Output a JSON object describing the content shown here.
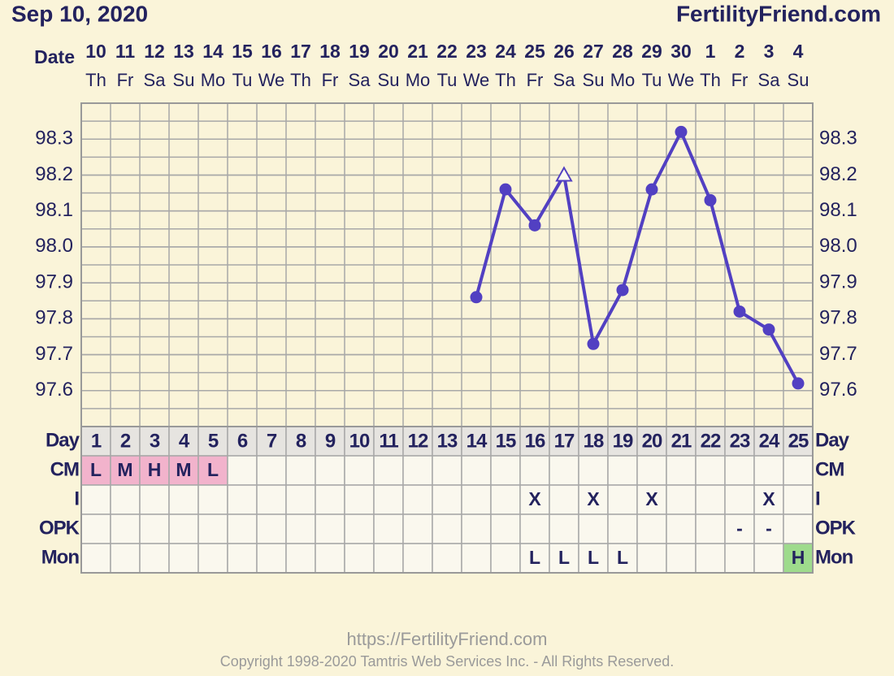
{
  "chart_data": {
    "type": "line",
    "title": "Sep 10, 2020",
    "brand": "FertilityFriend.com",
    "x_label": "Date",
    "categories": [
      "10",
      "11",
      "12",
      "13",
      "14",
      "15",
      "16",
      "17",
      "18",
      "19",
      "20",
      "21",
      "22",
      "23",
      "24",
      "25",
      "26",
      "27",
      "28",
      "29",
      "30",
      "1",
      "2",
      "3",
      "4"
    ],
    "weekdays": [
      "Th",
      "Fr",
      "Sa",
      "Su",
      "Mo",
      "Tu",
      "We",
      "Th",
      "Fr",
      "Sa",
      "Su",
      "Mo",
      "Tu",
      "We",
      "Th",
      "Fr",
      "Sa",
      "Su",
      "Mo",
      "Tu",
      "We",
      "Th",
      "Fr",
      "Sa",
      "Su"
    ],
    "day_label": "Day",
    "days": [
      1,
      2,
      3,
      4,
      5,
      6,
      7,
      8,
      9,
      10,
      11,
      12,
      13,
      14,
      15,
      16,
      17,
      18,
      19,
      20,
      21,
      22,
      23,
      24,
      25
    ],
    "series": [
      {
        "color": "#5240c2",
        "values": [
          null,
          null,
          null,
          null,
          null,
          null,
          null,
          null,
          null,
          null,
          null,
          null,
          null,
          97.86,
          98.16,
          98.06,
          98.2,
          97.73,
          97.88,
          98.16,
          98.32,
          98.13,
          97.82,
          97.77,
          97.62
        ],
        "markers": [
          null,
          null,
          null,
          null,
          null,
          null,
          null,
          null,
          null,
          null,
          null,
          null,
          null,
          "circle",
          "circle",
          "circle",
          "open-triangle",
          "circle",
          "circle",
          "circle",
          "circle",
          "circle",
          "circle",
          "circle",
          "circle"
        ]
      }
    ],
    "ylim": [
      97.5,
      98.4
    ],
    "yticks": [
      {
        "value": 97.6,
        "label": "97.6"
      },
      {
        "value": 97.7,
        "label": "97.7"
      },
      {
        "value": 97.8,
        "label": "97.8"
      },
      {
        "value": 97.9,
        "label": "97.9"
      },
      {
        "value": 98,
        "label": "98.0"
      },
      {
        "value": 98.1,
        "label": "98.1"
      },
      {
        "value": 98.2,
        "label": "98.2"
      },
      {
        "value": 98.3,
        "label": "98.3"
      }
    ],
    "grid": true,
    "rows": [
      {
        "label": "CM",
        "values": [
          "L",
          "M",
          "H",
          "M",
          "L",
          null,
          null,
          null,
          null,
          null,
          null,
          null,
          null,
          null,
          null,
          null,
          null,
          null,
          null,
          null,
          null,
          null,
          null,
          null,
          null
        ],
        "fills": [
          "#f2b3cc",
          "#f2b3cc",
          "#f2b3cc",
          "#f2b3cc",
          "#f2b3cc",
          null,
          null,
          null,
          null,
          null,
          null,
          null,
          null,
          null,
          null,
          null,
          null,
          null,
          null,
          null,
          null,
          null,
          null,
          null,
          null
        ]
      },
      {
        "label": "I",
        "values": [
          null,
          null,
          null,
          null,
          null,
          null,
          null,
          null,
          null,
          null,
          null,
          null,
          null,
          null,
          null,
          "X",
          null,
          "X",
          null,
          "X",
          null,
          null,
          null,
          "X",
          null
        ],
        "fills": [
          null,
          null,
          null,
          null,
          null,
          null,
          null,
          null,
          null,
          null,
          null,
          null,
          null,
          null,
          null,
          null,
          null,
          null,
          null,
          null,
          null,
          null,
          null,
          null,
          null
        ]
      },
      {
        "label": "OPK",
        "values": [
          null,
          null,
          null,
          null,
          null,
          null,
          null,
          null,
          null,
          null,
          null,
          null,
          null,
          null,
          null,
          null,
          null,
          null,
          null,
          null,
          null,
          null,
          "-",
          "-",
          null
        ],
        "fills": [
          null,
          null,
          null,
          null,
          null,
          null,
          null,
          null,
          null,
          null,
          null,
          null,
          null,
          null,
          null,
          null,
          null,
          null,
          null,
          null,
          null,
          null,
          null,
          null,
          null
        ]
      },
      {
        "label": "Mon",
        "values": [
          null,
          null,
          null,
          null,
          null,
          null,
          null,
          null,
          null,
          null,
          null,
          null,
          null,
          null,
          null,
          "L",
          "L",
          "L",
          "L",
          null,
          null,
          null,
          null,
          null,
          "H"
        ],
        "fills": [
          null,
          null,
          null,
          null,
          null,
          null,
          null,
          null,
          null,
          null,
          null,
          null,
          null,
          null,
          null,
          null,
          null,
          null,
          null,
          null,
          null,
          null,
          null,
          null,
          "#9edb8c"
        ]
      }
    ]
  },
  "footer": {
    "url": "https://FertilityFriend.com",
    "copyright": "Copyright 1998-2020 Tamtris Web Services Inc. - All Rights Reserved."
  }
}
